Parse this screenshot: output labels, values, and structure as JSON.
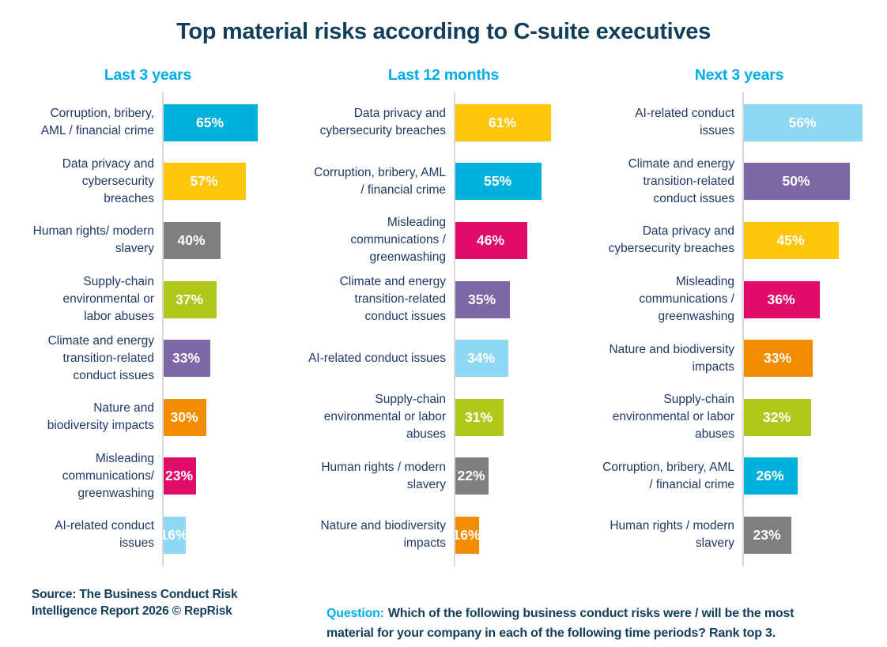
{
  "title": "Top material risks according to C-suite executives",
  "source": {
    "text": "Source: The Business Conduct Risk\nIntelligence Report 2026 © RepRisk"
  },
  "question": {
    "prefix": "Question:",
    "text": "Which of the following business conduct risks were / will be the most\nmaterial for your company in each of the following time periods? Rank top 3."
  },
  "colors": {
    "accent_cyan": "#00ACE8",
    "title_navy": "#113E5A",
    "label_navy": "#1F3864",
    "axis_gray": "#D9D9D9"
  },
  "chart_data": {
    "type": "bar",
    "orientation": "horizontal",
    "value_unit": "%",
    "grid": false,
    "legend": false,
    "palette": {
      "cyan": "#00B1DC",
      "yellow": "#FDC608",
      "gray": "#7F7F7F",
      "green": "#B2C71B",
      "purple": "#7C68A6",
      "orange": "#F28D00",
      "magenta": "#E00A68",
      "lightblue": "#8DD8F2"
    },
    "panels": [
      {
        "title": "Last 3 years",
        "xlim": [
          0,
          70
        ],
        "bars": [
          {
            "label": "Corruption, bribery,\nAML / financial crime",
            "value": 65,
            "display": "65%",
            "color": "cyan"
          },
          {
            "label": "Data privacy and\ncybersecurity\nbreaches",
            "value": 57,
            "display": "57%",
            "color": "yellow"
          },
          {
            "label": "Human rights/ modern\nslavery",
            "value": 40,
            "display": "40%",
            "color": "gray"
          },
          {
            "label": "Supply-chain\nenvironmental or\nlabor abuses",
            "value": 37,
            "display": "37%",
            "color": "green"
          },
          {
            "label": "Climate and energy\ntransition-related\nconduct issues",
            "value": 33,
            "display": "33%",
            "color": "purple"
          },
          {
            "label": "Nature and\nbiodiversity impacts",
            "value": 30,
            "display": "30%",
            "color": "orange"
          },
          {
            "label": "Misleading\ncommunications/\ngreenwashing",
            "value": 23,
            "display": "23%",
            "color": "magenta"
          },
          {
            "label": "AI-related conduct\nissues",
            "value": 16,
            "display": "16%",
            "color": "lightblue"
          }
        ]
      },
      {
        "title": "Last 12 months",
        "xlim": [
          0,
          65
        ],
        "bars": [
          {
            "label": "Data privacy and\ncybersecurity breaches",
            "value": 61,
            "display": "61%",
            "color": "yellow"
          },
          {
            "label": "Corruption, bribery, AML\n/ financial crime",
            "value": 55,
            "display": "55%",
            "color": "cyan"
          },
          {
            "label": "Misleading\ncommunications /\ngreenwashing",
            "value": 46,
            "display": "46%",
            "color": "magenta"
          },
          {
            "label": "Climate and energy\ntransition-related\nconduct issues",
            "value": 35,
            "display": "35%",
            "color": "purple"
          },
          {
            "label": "AI-related conduct issues",
            "value": 34,
            "display": "34%",
            "color": "lightblue"
          },
          {
            "label": "Supply-chain\nenvironmental or labor\nabuses",
            "value": 31,
            "display": "31%",
            "color": "green"
          },
          {
            "label": "Human rights / modern\nslavery",
            "value": 22,
            "display": "22%",
            "color": "gray"
          },
          {
            "label": "Nature and biodiversity\nimpacts",
            "value": 16,
            "display": "16%",
            "color": "orange"
          }
        ]
      },
      {
        "title": "Next 3 years",
        "xlim": [
          0,
          60
        ],
        "bars": [
          {
            "label": "AI-related conduct\nissues",
            "value": 56,
            "display": "56%",
            "color": "lightblue"
          },
          {
            "label": "Climate and energy\ntransition-related\nconduct issues",
            "value": 50,
            "display": "50%",
            "color": "purple"
          },
          {
            "label": "Data privacy and\ncybersecurity breaches",
            "value": 45,
            "display": "45%",
            "color": "yellow"
          },
          {
            "label": "Misleading\ncommunications /\ngreenwashing",
            "value": 36,
            "display": "36%",
            "color": "magenta"
          },
          {
            "label": "Nature and biodiversity\nimpacts",
            "value": 33,
            "display": "33%",
            "color": "orange"
          },
          {
            "label": "Supply-chain\nenvironmental or labor\nabuses",
            "value": 32,
            "display": "32%",
            "color": "green"
          },
          {
            "label": "Corruption, bribery, AML\n/ financial crime",
            "value": 26,
            "display": "26%",
            "color": "cyan"
          },
          {
            "label": "Human rights / modern\nslavery",
            "value": 23,
            "display": "23%",
            "color": "gray"
          }
        ]
      }
    ]
  }
}
